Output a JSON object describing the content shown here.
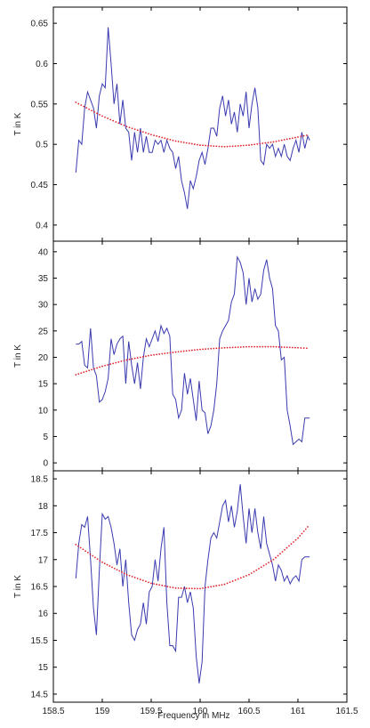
{
  "chart_data": [
    {
      "type": "line",
      "xlabel": "",
      "ylabel": "T in K",
      "xlim": [
        158.5,
        161.5
      ],
      "ylim": [
        0.38,
        0.67
      ],
      "yticks": [
        "0.4",
        "0.45",
        "0.5",
        "0.55",
        "0.6",
        "0.65"
      ],
      "xticks": [],
      "series": [
        {
          "style": "solid",
          "color": "#3a3ab0",
          "x": [
            158.73,
            158.76,
            158.79,
            158.82,
            158.85,
            158.88,
            158.91,
            158.94,
            158.97,
            159.0,
            159.03,
            159.06,
            159.09,
            159.12,
            159.15,
            159.18,
            159.21,
            159.24,
            159.27,
            159.3,
            159.33,
            159.36,
            159.39,
            159.42,
            159.45,
            159.48,
            159.51,
            159.54,
            159.57,
            159.6,
            159.63,
            159.66,
            159.69,
            159.72,
            159.75,
            159.78,
            159.81,
            159.84,
            159.87,
            159.9,
            159.93,
            159.96,
            159.99,
            160.02,
            160.05,
            160.08,
            160.11,
            160.14,
            160.17,
            160.2,
            160.23,
            160.26,
            160.29,
            160.32,
            160.35,
            160.38,
            160.41,
            160.44,
            160.47,
            160.5,
            160.53,
            160.56,
            160.59,
            160.62,
            160.65,
            160.68,
            160.71,
            160.74,
            160.77,
            160.8,
            160.83,
            160.86,
            160.89,
            160.92,
            160.95,
            160.98,
            161.01,
            161.04,
            161.07,
            161.1,
            161.12
          ],
          "y": [
            0.465,
            0.505,
            0.5,
            0.545,
            0.565,
            0.555,
            0.545,
            0.52,
            0.56,
            0.575,
            0.57,
            0.645,
            0.6,
            0.55,
            0.575,
            0.525,
            0.555,
            0.52,
            0.515,
            0.48,
            0.515,
            0.49,
            0.52,
            0.49,
            0.51,
            0.49,
            0.49,
            0.505,
            0.5,
            0.505,
            0.49,
            0.505,
            0.495,
            0.49,
            0.47,
            0.485,
            0.455,
            0.44,
            0.42,
            0.455,
            0.445,
            0.46,
            0.48,
            0.49,
            0.475,
            0.495,
            0.52,
            0.52,
            0.51,
            0.545,
            0.56,
            0.535,
            0.555,
            0.525,
            0.54,
            0.515,
            0.55,
            0.535,
            0.565,
            0.52,
            0.55,
            0.57,
            0.545,
            0.48,
            0.475,
            0.5,
            0.495,
            0.5,
            0.485,
            0.495,
            0.485,
            0.5,
            0.485,
            0.48,
            0.495,
            0.505,
            0.49,
            0.515,
            0.495,
            0.51,
            0.505
          ]
        },
        {
          "style": "dotted",
          "color": "#e0202a",
          "x": [
            158.73,
            159.0,
            159.25,
            159.5,
            159.75,
            160.0,
            160.25,
            160.5,
            160.75,
            161.0,
            161.12
          ],
          "y": [
            0.552,
            0.535,
            0.522,
            0.512,
            0.504,
            0.499,
            0.497,
            0.499,
            0.503,
            0.509,
            0.512
          ]
        }
      ]
    },
    {
      "type": "line",
      "xlabel": "",
      "ylabel": "T in K",
      "xlim": [
        158.5,
        161.5
      ],
      "ylim": [
        -1.5,
        42
      ],
      "yticks": [
        "0",
        "5",
        "10",
        "15",
        "20",
        "25",
        "30",
        "35",
        "40"
      ],
      "xticks": [],
      "series": [
        {
          "style": "solid",
          "color": "#3a3ab0",
          "x": [
            158.73,
            158.76,
            158.79,
            158.82,
            158.85,
            158.88,
            158.91,
            158.94,
            158.97,
            159.0,
            159.03,
            159.06,
            159.09,
            159.12,
            159.15,
            159.18,
            159.21,
            159.24,
            159.27,
            159.3,
            159.33,
            159.36,
            159.39,
            159.42,
            159.45,
            159.48,
            159.51,
            159.54,
            159.57,
            159.6,
            159.63,
            159.66,
            159.69,
            159.72,
            159.75,
            159.78,
            159.81,
            159.84,
            159.87,
            159.9,
            159.93,
            159.96,
            159.99,
            160.02,
            160.05,
            160.08,
            160.11,
            160.14,
            160.17,
            160.2,
            160.23,
            160.26,
            160.29,
            160.32,
            160.35,
            160.38,
            160.41,
            160.44,
            160.47,
            160.5,
            160.53,
            160.56,
            160.59,
            160.62,
            160.65,
            160.68,
            160.71,
            160.74,
            160.77,
            160.8,
            160.83,
            160.86,
            160.89,
            160.92,
            160.95,
            160.98,
            161.01,
            161.04,
            161.07,
            161.1,
            161.12
          ],
          "y": [
            22.5,
            22.5,
            23.0,
            18.5,
            18.0,
            25.5,
            18.0,
            16.5,
            11.5,
            12.0,
            13.5,
            16.0,
            23.5,
            20.5,
            22.5,
            23.5,
            24.0,
            15.0,
            23.0,
            18.5,
            15.0,
            19.0,
            14.0,
            20.0,
            23.5,
            22.0,
            23.5,
            25.0,
            23.0,
            26.0,
            24.5,
            25.5,
            24.0,
            13.0,
            12.0,
            8.5,
            10.0,
            17.0,
            13.0,
            16.0,
            12.0,
            8.0,
            15.5,
            10.0,
            9.5,
            5.5,
            7.0,
            10.0,
            15.0,
            23.5,
            25.0,
            26.0,
            27.0,
            30.5,
            32.0,
            39.0,
            38.0,
            36.0,
            30.0,
            35.0,
            30.5,
            33.0,
            31.0,
            32.0,
            36.5,
            38.5,
            35.0,
            33.0,
            26.0,
            25.0,
            19.5,
            20.0,
            10.0,
            7.0,
            3.5,
            4.0,
            4.5,
            4.0,
            8.5,
            8.5,
            8.5
          ]
        },
        {
          "style": "dotted",
          "color": "#e0202a",
          "x": [
            158.73,
            159.0,
            159.25,
            159.5,
            159.75,
            160.0,
            160.25,
            160.5,
            160.75,
            161.0,
            161.12
          ],
          "y": [
            16.7,
            18.3,
            19.5,
            20.4,
            21.0,
            21.5,
            21.8,
            22.0,
            22.0,
            21.8,
            21.7
          ]
        }
      ]
    },
    {
      "type": "line",
      "xlabel": "Frequency in MHz",
      "ylabel": "T in K",
      "xlim": [
        158.5,
        161.5
      ],
      "ylim": [
        14.35,
        18.65
      ],
      "yticks": [
        "14.5",
        "15",
        "15.5",
        "16",
        "16.5",
        "17",
        "17.5",
        "18",
        "18.5"
      ],
      "xticks": [
        "158.5",
        "159",
        "159.5",
        "160",
        "160.5",
        "161",
        "161.5"
      ],
      "series": [
        {
          "style": "solid",
          "color": "#3a3ab0",
          "x": [
            158.73,
            158.76,
            158.79,
            158.82,
            158.85,
            158.88,
            158.91,
            158.94,
            158.97,
            159.0,
            159.03,
            159.06,
            159.09,
            159.12,
            159.15,
            159.18,
            159.21,
            159.24,
            159.27,
            159.3,
            159.33,
            159.36,
            159.39,
            159.42,
            159.45,
            159.48,
            159.51,
            159.54,
            159.57,
            159.6,
            159.63,
            159.66,
            159.69,
            159.72,
            159.75,
            159.78,
            159.81,
            159.84,
            159.87,
            159.9,
            159.93,
            159.96,
            159.99,
            160.02,
            160.05,
            160.08,
            160.11,
            160.14,
            160.17,
            160.2,
            160.23,
            160.26,
            160.29,
            160.32,
            160.35,
            160.38,
            160.41,
            160.44,
            160.47,
            160.5,
            160.53,
            160.56,
            160.59,
            160.62,
            160.65,
            160.68,
            160.71,
            160.74,
            160.77,
            160.8,
            160.83,
            160.86,
            160.89,
            160.92,
            160.95,
            160.98,
            161.01,
            161.04,
            161.07,
            161.1,
            161.12
          ],
          "y": [
            16.65,
            17.3,
            17.65,
            17.6,
            17.8,
            17.0,
            16.1,
            15.6,
            16.8,
            17.85,
            17.75,
            17.8,
            17.6,
            17.3,
            16.9,
            17.2,
            16.5,
            17.0,
            16.2,
            15.6,
            15.5,
            15.7,
            15.8,
            16.2,
            15.8,
            16.4,
            16.5,
            17.0,
            16.6,
            17.2,
            17.6,
            16.2,
            15.4,
            15.4,
            15.3,
            16.3,
            16.3,
            16.5,
            16.2,
            16.4,
            16.1,
            15.2,
            14.7,
            15.1,
            16.5,
            17.0,
            17.4,
            17.5,
            17.4,
            17.7,
            18.0,
            18.1,
            17.7,
            18.0,
            17.6,
            17.9,
            18.4,
            17.8,
            17.3,
            17.95,
            17.5,
            17.95,
            17.5,
            17.2,
            17.8,
            17.3,
            17.1,
            16.9,
            16.6,
            16.9,
            16.8,
            16.6,
            16.7,
            16.55,
            16.65,
            16.7,
            16.6,
            17.0,
            17.05,
            17.05,
            17.05
          ]
        },
        {
          "style": "dotted",
          "color": "#e0202a",
          "x": [
            158.73,
            159.0,
            159.25,
            159.5,
            159.75,
            160.0,
            160.25,
            160.5,
            160.75,
            161.0,
            161.12
          ],
          "y": [
            17.28,
            16.95,
            16.72,
            16.56,
            16.47,
            16.46,
            16.54,
            16.72,
            17.0,
            17.4,
            17.65
          ]
        }
      ]
    }
  ]
}
